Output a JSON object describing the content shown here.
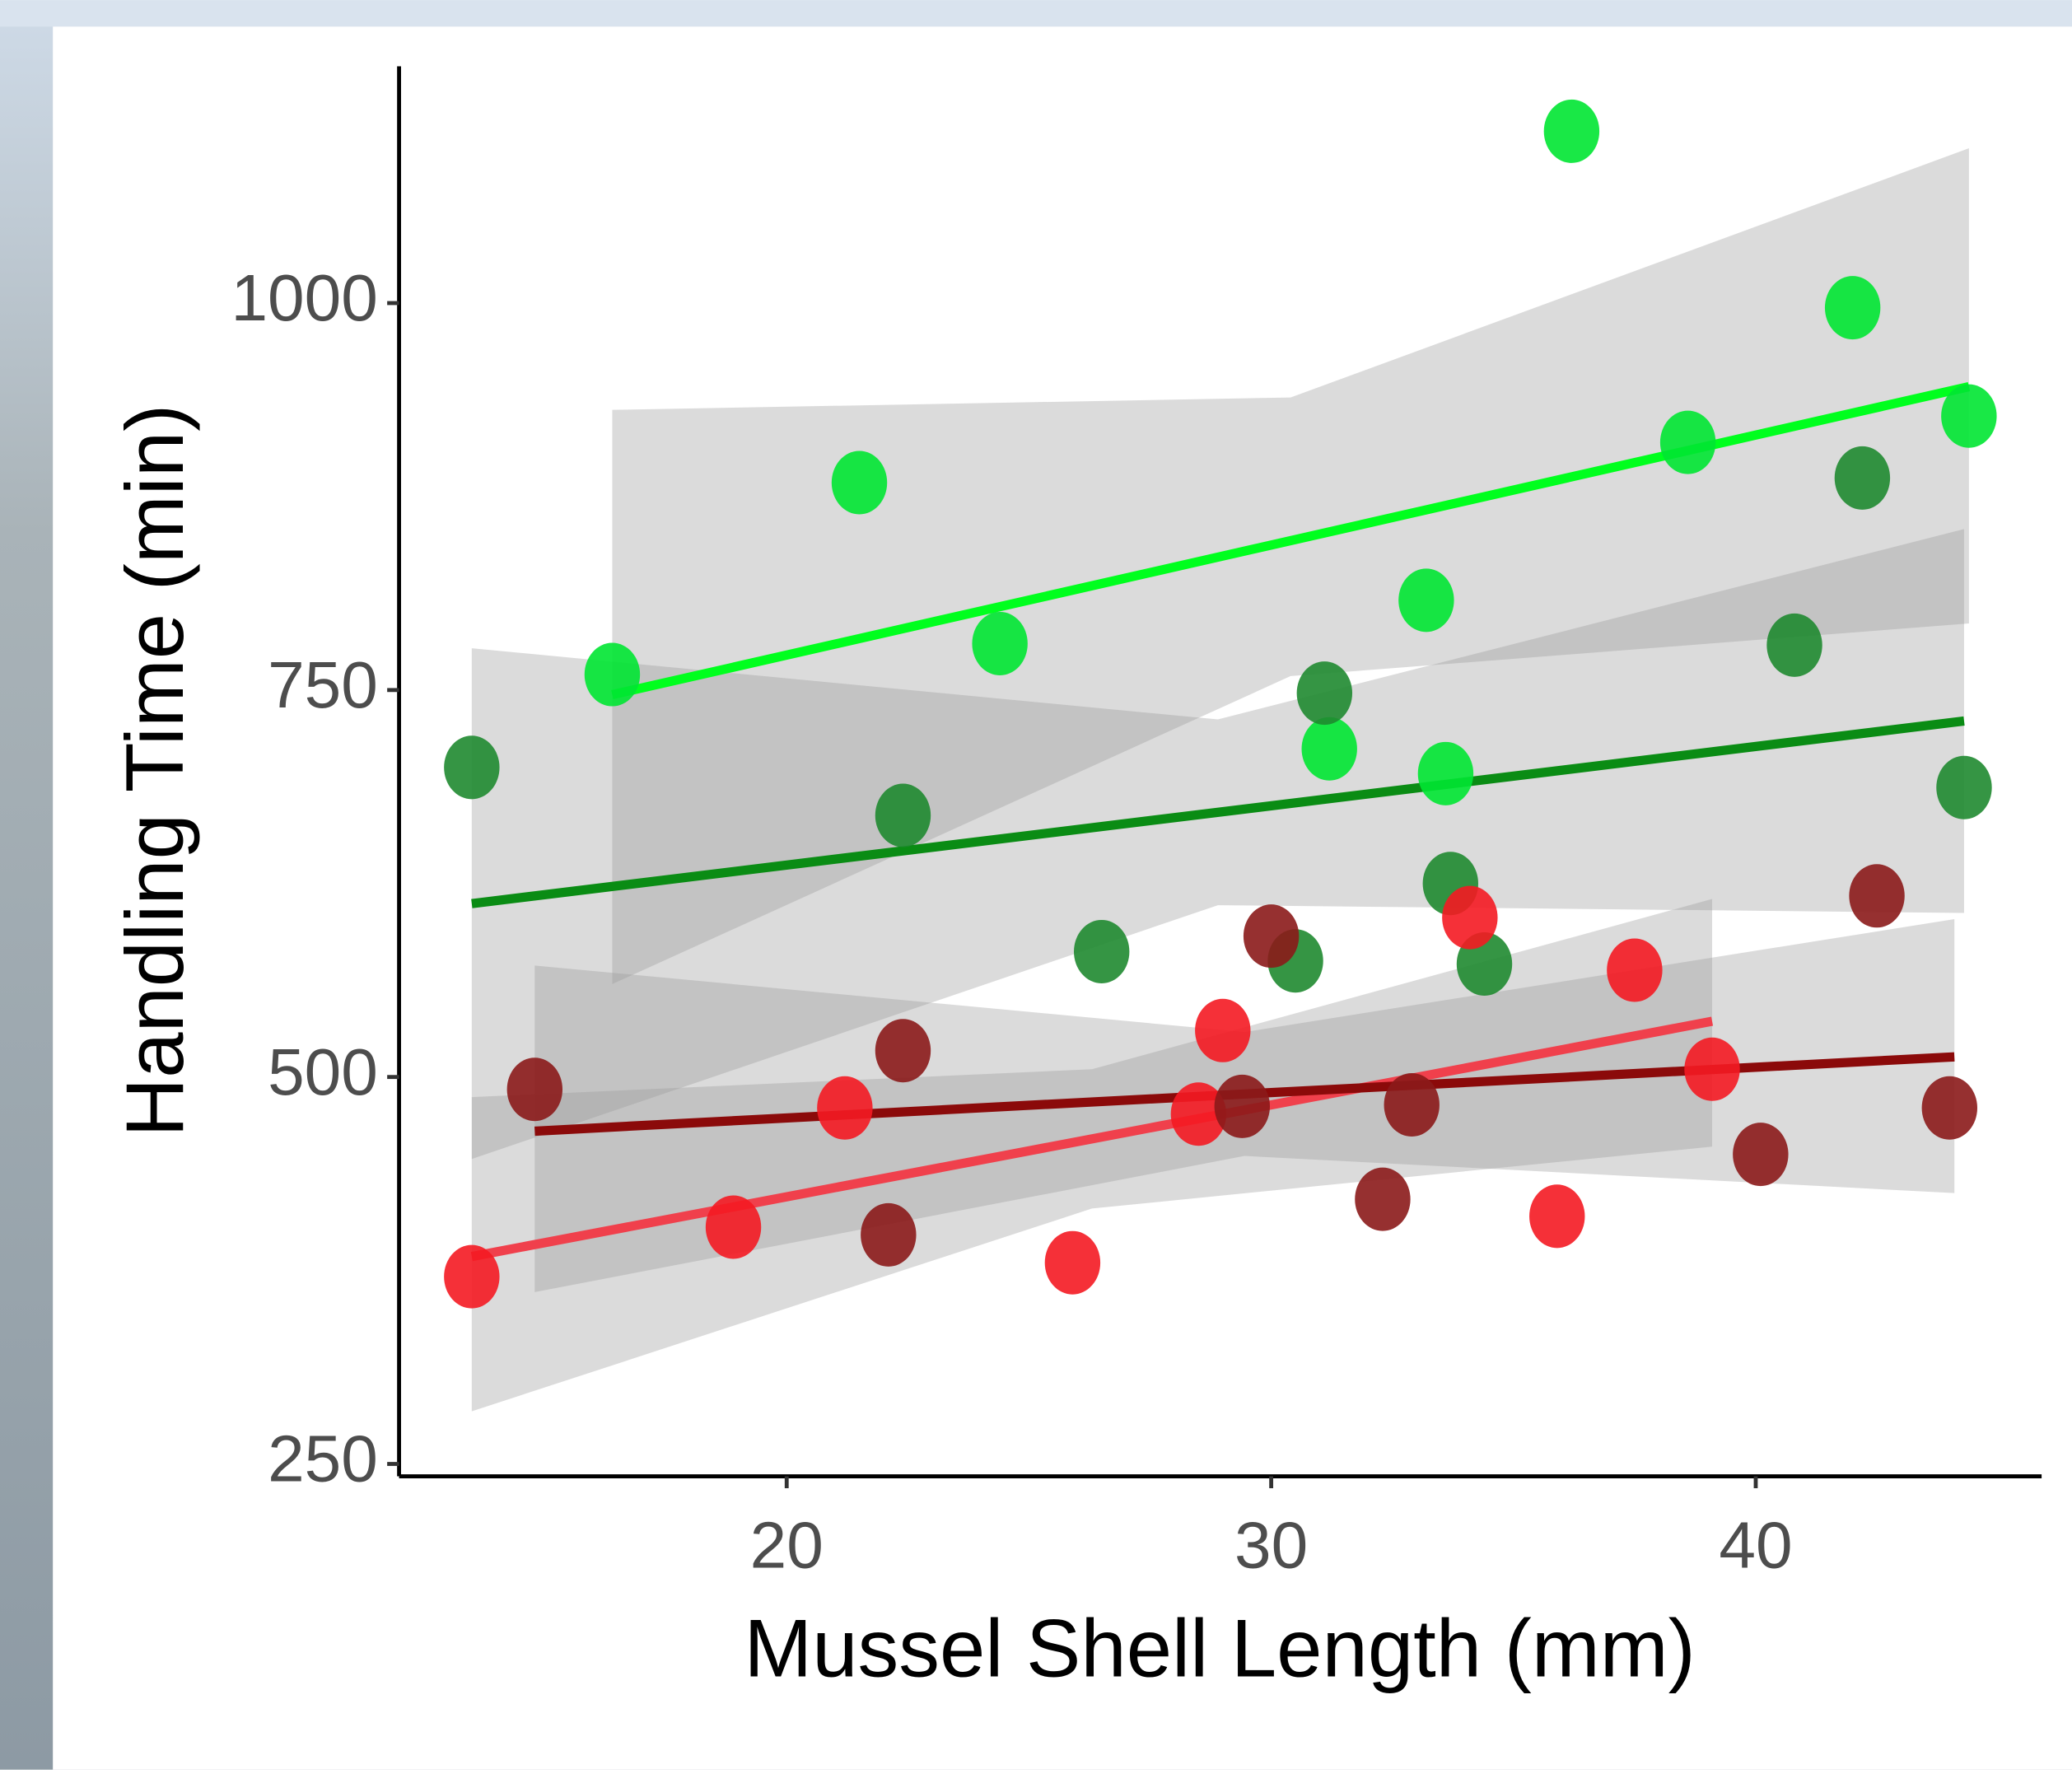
{
  "chart_data": {
    "type": "scatter",
    "xlabel": "Mussel Shell Length (mm)",
    "ylabel": "Handling Time (min)",
    "xlim": [
      12,
      45.9
    ],
    "ylim": [
      242,
      1153
    ],
    "xticks": [
      20,
      30,
      40
    ],
    "yticks": [
      250,
      500,
      750,
      1000
    ],
    "series": [
      {
        "color": "#00e632",
        "line_color": "#00ff1e",
        "x": [
          36.2,
          21.5,
          16.4,
          24.4,
          33.2,
          31.2,
          33.6,
          38.6,
          42.0,
          44.4
        ],
        "values": [
          1111,
          884,
          760,
          780,
          808,
          712,
          696,
          910,
          997,
          927
        ],
        "fit": {
          "x": [
            16.4,
            44.4
          ],
          "y": [
            747,
            946
          ]
        },
        "ci": {
          "x": [
            16.4,
            30.4,
            44.4
          ],
          "lower": [
            560,
            759,
            793
          ],
          "upper": [
            931,
            939,
            1100
          ]
        }
      },
      {
        "color": "#1f8a30",
        "line_color": "#0a8c14",
        "x": [
          13.5,
          22.4,
          31.1,
          33.7,
          26.5,
          30.5,
          34.4,
          40.8,
          42.2,
          44.3
        ],
        "values": [
          700,
          669,
          748,
          625,
          581,
          575,
          573,
          779,
          887,
          687
        ],
        "fit": {
          "x": [
            13.5,
            44.3
          ],
          "y": [
            612,
            730
          ]
        },
        "ci": {
          "x": [
            13.5,
            28.9,
            44.3
          ],
          "lower": [
            447,
            611,
            606
          ],
          "upper": [
            777,
            731,
            854
          ]
        }
      },
      {
        "color": "#f41a22",
        "line_color": "#f0404c",
        "x": [
          13.5,
          18.9,
          21.2,
          25.9,
          28.5,
          29.0,
          34.1,
          35.9,
          37.5,
          39.1
        ],
        "values": [
          371,
          403,
          480,
          380,
          476,
          530,
          603,
          410,
          569,
          505
        ],
        "fit": {
          "x": [
            13.5,
            39.1
          ],
          "y": [
            384,
            536
          ]
        },
        "ci": {
          "x": [
            13.5,
            26.3,
            39.1
          ],
          "lower": [
            284,
            415,
            455
          ],
          "upper": [
            487,
            505,
            615
          ]
        }
      },
      {
        "color": "#8b1a1a",
        "line_color": "#8b0a0a",
        "x": [
          14.8,
          22.4,
          22.1,
          29.4,
          30.0,
          32.3,
          32.9,
          40.1,
          42.5,
          44.0
        ],
        "values": [
          492,
          517,
          398,
          481,
          591,
          421,
          482,
          450,
          617,
          480
        ],
        "fit": {
          "x": [
            14.8,
            44.1
          ],
          "y": [
            465,
            513
          ]
        },
        "ci": {
          "x": [
            14.8,
            29.45,
            44.1
          ],
          "lower": [
            361,
            449,
            425
          ],
          "upper": [
            572,
            529,
            602
          ]
        }
      }
    ]
  }
}
